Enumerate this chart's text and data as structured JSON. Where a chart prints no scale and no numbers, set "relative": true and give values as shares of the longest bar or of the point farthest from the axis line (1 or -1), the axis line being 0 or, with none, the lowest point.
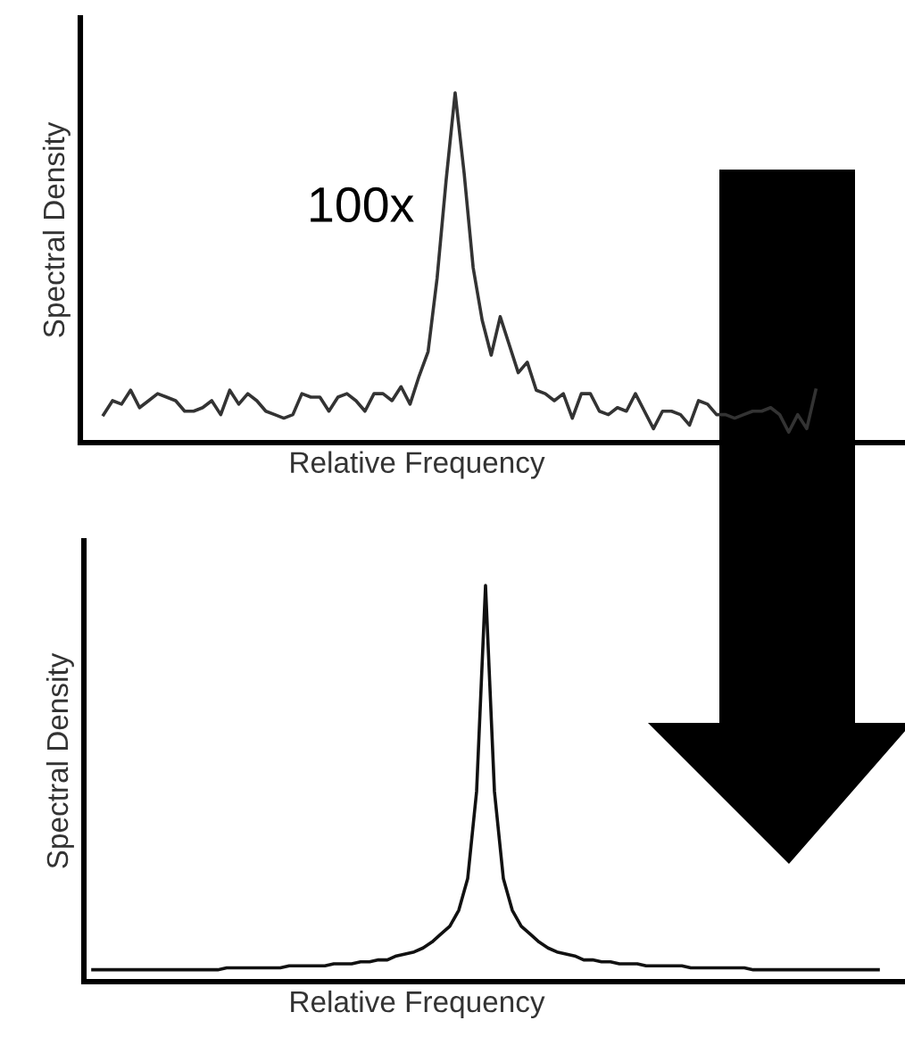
{
  "chart_data": [
    {
      "type": "line",
      "xlabel": "Relative Frequency",
      "ylabel": "Spectral Density",
      "relative": true,
      "color": "#333333",
      "annotations": [
        "100x"
      ],
      "categories": [
        null,
        null,
        null,
        null,
        null,
        null,
        null,
        null,
        null,
        null,
        null,
        null,
        null,
        null,
        null,
        null,
        null,
        null,
        null,
        null,
        null,
        null,
        null,
        null,
        null,
        null,
        null,
        null,
        null,
        null,
        null,
        null,
        null,
        null,
        null,
        null,
        null,
        null,
        null,
        null,
        null,
        null,
        null,
        null,
        null,
        null,
        null,
        null,
        null,
        null,
        null,
        null,
        null,
        null,
        null,
        null,
        null,
        null,
        null,
        null,
        null,
        null,
        null,
        null,
        null,
        null,
        null,
        null,
        null,
        null,
        null,
        null,
        null,
        null,
        null,
        null,
        null,
        null,
        null,
        null
      ],
      "values": [
        0.08,
        0.12,
        0.11,
        0.15,
        0.1,
        0.12,
        0.14,
        0.13,
        0.12,
        0.09,
        0.09,
        0.1,
        0.12,
        0.08,
        0.15,
        0.11,
        0.14,
        0.12,
        0.09,
        0.08,
        0.07,
        0.08,
        0.14,
        0.13,
        0.13,
        0.09,
        0.13,
        0.14,
        0.12,
        0.09,
        0.14,
        0.14,
        0.12,
        0.16,
        0.11,
        0.19,
        0.26,
        0.47,
        0.75,
        1,
        0.77,
        0.5,
        0.35,
        0.25,
        0.36,
        0.28,
        0.2,
        0.23,
        0.15,
        0.14,
        0.12,
        0.14,
        0.07,
        0.14,
        0.14,
        0.09,
        0.08,
        0.1,
        0.09,
        0.14,
        0.09,
        0.04,
        0.09,
        0.09,
        0.08,
        0.05,
        0.12,
        0.11,
        0.08,
        0.08,
        0.07,
        0.08,
        0.09,
        0.09,
        0.1,
        0.08,
        0.03,
        0.08,
        0.04,
        0.15
      ]
    },
    {
      "type": "line",
      "xlabel": "Relative Frequency",
      "ylabel": "Spectral Density",
      "relative": true,
      "color": "#111111",
      "categories": [
        null,
        null,
        null,
        null,
        null,
        null,
        null,
        null,
        null,
        null,
        null,
        null,
        null,
        null,
        null,
        null,
        null,
        null,
        null,
        null,
        null,
        null,
        null,
        null,
        null,
        null,
        null,
        null,
        null,
        null,
        null,
        null,
        null,
        null,
        null,
        null,
        null,
        null,
        null,
        null,
        null,
        null,
        null,
        null,
        null,
        null,
        null,
        null,
        null,
        null,
        null,
        null,
        null,
        null,
        null,
        null,
        null,
        null,
        null,
        null,
        null,
        null,
        null,
        null,
        null,
        null,
        null,
        null,
        null,
        null,
        null,
        null,
        null,
        null,
        null,
        null,
        null,
        null,
        null,
        null,
        null,
        null,
        null,
        null,
        null,
        null,
        null,
        null,
        null
      ],
      "values": [
        0.03,
        0.03,
        0.03,
        0.03,
        0.03,
        0.03,
        0.03,
        0.03,
        0.03,
        0.03,
        0.03,
        0.03,
        0.03,
        0.03,
        0.03,
        0.035,
        0.035,
        0.035,
        0.035,
        0.035,
        0.035,
        0.035,
        0.04,
        0.04,
        0.04,
        0.04,
        0.04,
        0.045,
        0.045,
        0.045,
        0.05,
        0.05,
        0.055,
        0.055,
        0.065,
        0.07,
        0.075,
        0.085,
        0.1,
        0.12,
        0.14,
        0.18,
        0.26,
        0.48,
        1,
        0.48,
        0.26,
        0.18,
        0.14,
        0.12,
        0.1,
        0.085,
        0.075,
        0.07,
        0.065,
        0.055,
        0.055,
        0.05,
        0.05,
        0.045,
        0.045,
        0.045,
        0.04,
        0.04,
        0.04,
        0.04,
        0.04,
        0.035,
        0.035,
        0.035,
        0.035,
        0.035,
        0.035,
        0.035,
        0.03,
        0.03,
        0.03,
        0.03,
        0.03,
        0.03,
        0.03,
        0.03,
        0.03,
        0.03,
        0.03,
        0.03,
        0.03,
        0.03,
        0.03
      ]
    }
  ]
}
